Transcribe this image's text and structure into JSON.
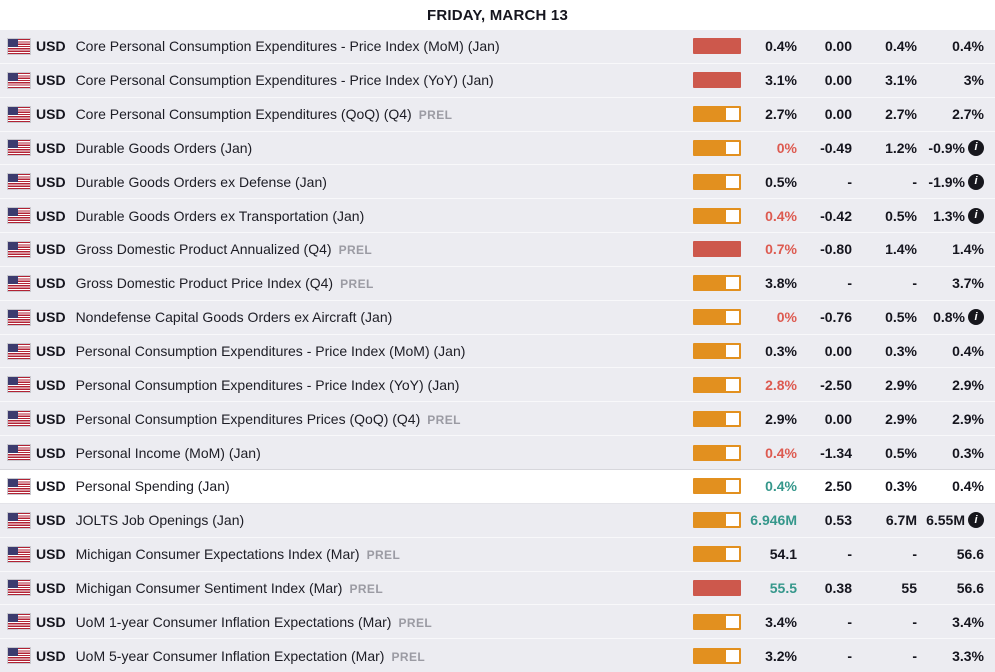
{
  "header": {
    "date_label": "FRIDAY, MARCH 13"
  },
  "colors": {
    "vol_high": "#cd584c",
    "vol_medium": "#e2901f",
    "actual_negative": "#dd5a50",
    "actual_positive": "#35978b",
    "row_bg": "#ececf1",
    "highlight_bg": "#ffffff"
  },
  "columns": [
    "volatility",
    "actual",
    "deviation",
    "consensus",
    "previous"
  ],
  "info_icon_glyph": "i",
  "rows": [
    {
      "currency": "USD",
      "event": "Core Personal Consumption Expenditures - Price Index (MoM) (Jan)",
      "prel": false,
      "volatility": "high",
      "actual": "0.4%",
      "actual_color": "default",
      "deviation": "0.00",
      "consensus": "0.4%",
      "previous": "0.4%",
      "info": false,
      "highlight": false
    },
    {
      "currency": "USD",
      "event": "Core Personal Consumption Expenditures - Price Index (YoY) (Jan)",
      "prel": false,
      "volatility": "high",
      "actual": "3.1%",
      "actual_color": "default",
      "deviation": "0.00",
      "consensus": "3.1%",
      "previous": "3%",
      "info": false,
      "highlight": false
    },
    {
      "currency": "USD",
      "event": "Core Personal Consumption Expenditures (QoQ) (Q4)",
      "prel": true,
      "volatility": "medium",
      "actual": "2.7%",
      "actual_color": "default",
      "deviation": "0.00",
      "consensus": "2.7%",
      "previous": "2.7%",
      "info": false,
      "highlight": false
    },
    {
      "currency": "USD",
      "event": "Durable Goods Orders (Jan)",
      "prel": false,
      "volatility": "medium",
      "actual": "0%",
      "actual_color": "negative",
      "deviation": "-0.49",
      "consensus": "1.2%",
      "previous": "-0.9%",
      "info": true,
      "highlight": false
    },
    {
      "currency": "USD",
      "event": "Durable Goods Orders ex Defense (Jan)",
      "prel": false,
      "volatility": "medium",
      "actual": "0.5%",
      "actual_color": "default",
      "deviation": "-",
      "consensus": "-",
      "previous": "-1.9%",
      "info": true,
      "highlight": false
    },
    {
      "currency": "USD",
      "event": "Durable Goods Orders ex Transportation (Jan)",
      "prel": false,
      "volatility": "medium",
      "actual": "0.4%",
      "actual_color": "negative",
      "deviation": "-0.42",
      "consensus": "0.5%",
      "previous": "1.3%",
      "info": true,
      "highlight": false
    },
    {
      "currency": "USD",
      "event": "Gross Domestic Product Annualized (Q4)",
      "prel": true,
      "volatility": "high",
      "actual": "0.7%",
      "actual_color": "negative",
      "deviation": "-0.80",
      "consensus": "1.4%",
      "previous": "1.4%",
      "info": false,
      "highlight": false
    },
    {
      "currency": "USD",
      "event": "Gross Domestic Product Price Index (Q4)",
      "prel": true,
      "volatility": "medium",
      "actual": "3.8%",
      "actual_color": "default",
      "deviation": "-",
      "consensus": "-",
      "previous": "3.7%",
      "info": false,
      "highlight": false
    },
    {
      "currency": "USD",
      "event": "Nondefense Capital Goods Orders ex Aircraft (Jan)",
      "prel": false,
      "volatility": "medium",
      "actual": "0%",
      "actual_color": "negative",
      "deviation": "-0.76",
      "consensus": "0.5%",
      "previous": "0.8%",
      "info": true,
      "highlight": false
    },
    {
      "currency": "USD",
      "event": "Personal Consumption Expenditures - Price Index (MoM) (Jan)",
      "prel": false,
      "volatility": "medium",
      "actual": "0.3%",
      "actual_color": "default",
      "deviation": "0.00",
      "consensus": "0.3%",
      "previous": "0.4%",
      "info": false,
      "highlight": false
    },
    {
      "currency": "USD",
      "event": "Personal Consumption Expenditures - Price Index (YoY) (Jan)",
      "prel": false,
      "volatility": "medium",
      "actual": "2.8%",
      "actual_color": "negative",
      "deviation": "-2.50",
      "consensus": "2.9%",
      "previous": "2.9%",
      "info": false,
      "highlight": false
    },
    {
      "currency": "USD",
      "event": "Personal Consumption Expenditures Prices (QoQ) (Q4)",
      "prel": true,
      "volatility": "medium",
      "actual": "2.9%",
      "actual_color": "default",
      "deviation": "0.00",
      "consensus": "2.9%",
      "previous": "2.9%",
      "info": false,
      "highlight": false
    },
    {
      "currency": "USD",
      "event": "Personal Income (MoM) (Jan)",
      "prel": false,
      "volatility": "medium",
      "actual": "0.4%",
      "actual_color": "negative",
      "deviation": "-1.34",
      "consensus": "0.5%",
      "previous": "0.3%",
      "info": false,
      "highlight": false
    },
    {
      "currency": "USD",
      "event": "Personal Spending (Jan)",
      "prel": false,
      "volatility": "medium",
      "actual": "0.4%",
      "actual_color": "positive",
      "deviation": "2.50",
      "consensus": "0.3%",
      "previous": "0.4%",
      "info": false,
      "highlight": true
    },
    {
      "currency": "USD",
      "event": "JOLTS Job Openings (Jan)",
      "prel": false,
      "volatility": "medium",
      "actual": "6.946M",
      "actual_color": "positive",
      "deviation": "0.53",
      "consensus": "6.7M",
      "previous": "6.55M",
      "info": true,
      "highlight": false
    },
    {
      "currency": "USD",
      "event": "Michigan Consumer Expectations Index (Mar)",
      "prel": true,
      "volatility": "medium",
      "actual": "54.1",
      "actual_color": "default",
      "deviation": "-",
      "consensus": "-",
      "previous": "56.6",
      "info": false,
      "highlight": false
    },
    {
      "currency": "USD",
      "event": "Michigan Consumer Sentiment Index (Mar)",
      "prel": true,
      "volatility": "high",
      "actual": "55.5",
      "actual_color": "positive",
      "deviation": "0.38",
      "consensus": "55",
      "previous": "56.6",
      "info": false,
      "highlight": false
    },
    {
      "currency": "USD",
      "event": "UoM 1-year Consumer Inflation Expectations (Mar)",
      "prel": true,
      "volatility": "medium",
      "actual": "3.4%",
      "actual_color": "default",
      "deviation": "-",
      "consensus": "-",
      "previous": "3.4%",
      "info": false,
      "highlight": false
    },
    {
      "currency": "USD",
      "event": "UoM 5-year Consumer Inflation Expectation (Mar)",
      "prel": true,
      "volatility": "medium",
      "actual": "3.2%",
      "actual_color": "default",
      "deviation": "-",
      "consensus": "-",
      "previous": "3.3%",
      "info": false,
      "highlight": false
    }
  ]
}
